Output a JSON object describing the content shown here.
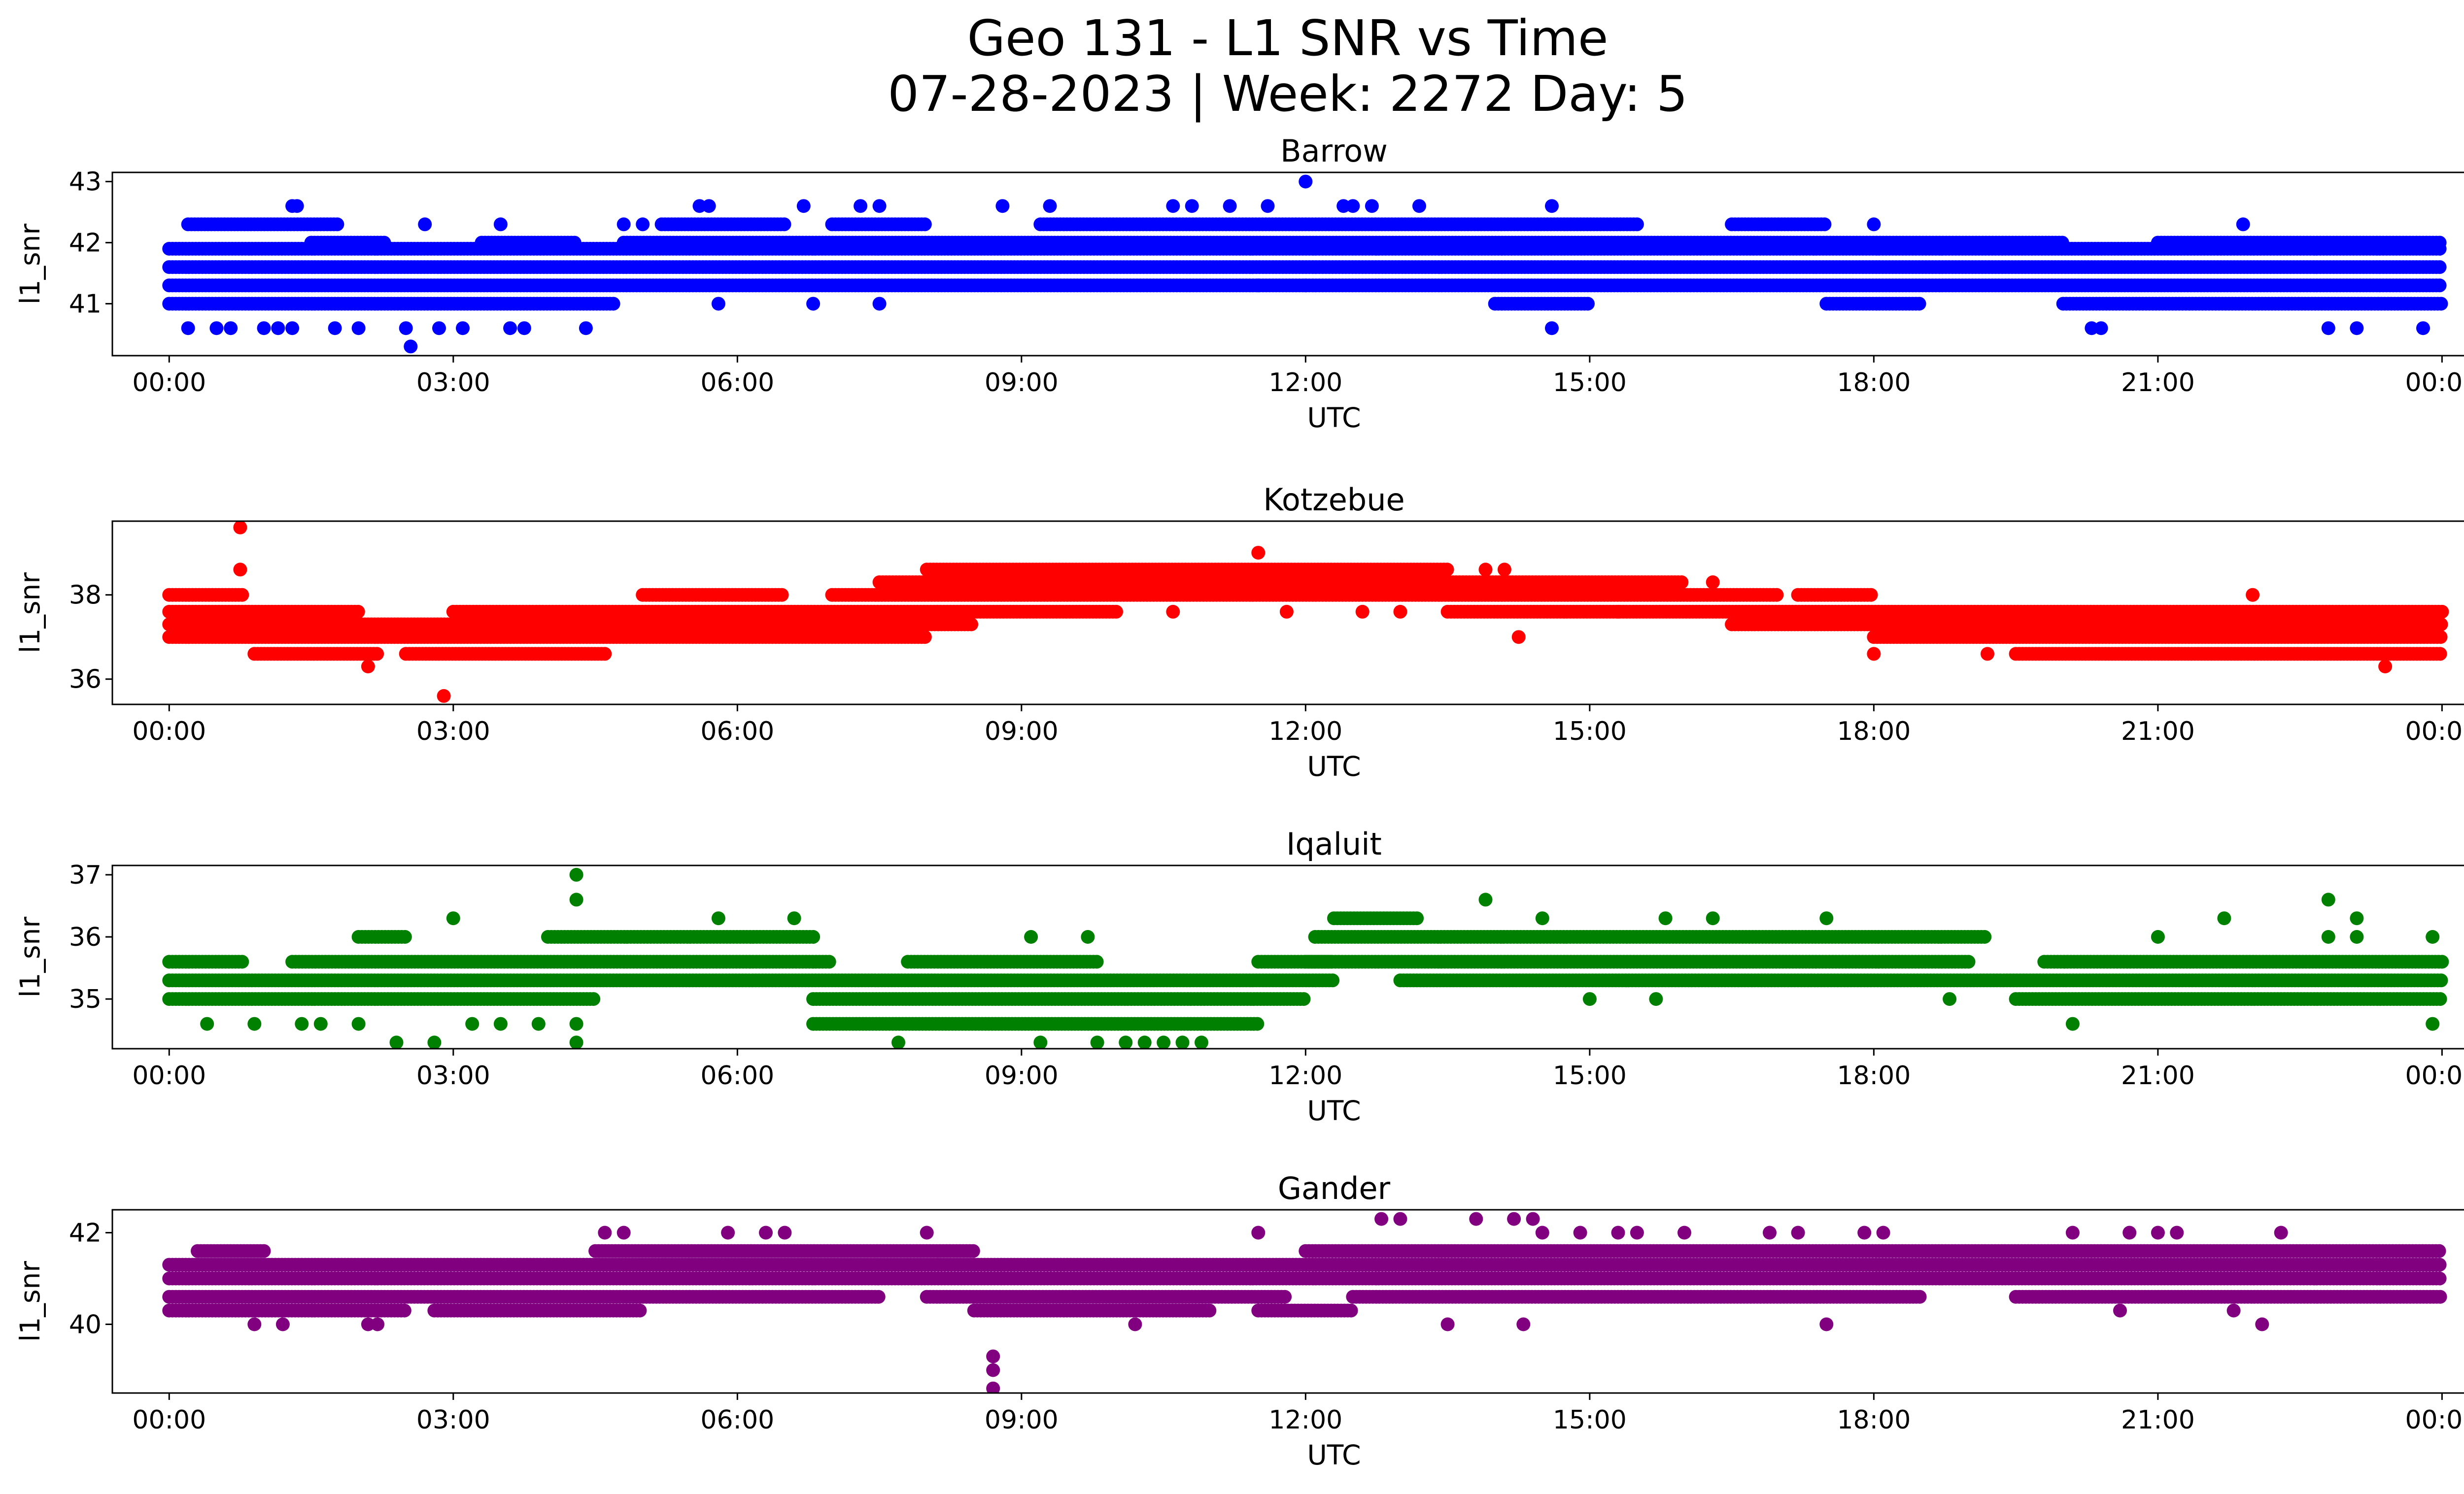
{
  "figure": {
    "title_line1": "Geo 131 - L1 SNR vs Time",
    "title_line2": "07-28-2023 | Week: 2272 Day: 5"
  },
  "chart_data": [
    {
      "type": "scatter",
      "title": "Barrow",
      "xlabel": "UTC",
      "ylabel": "l1_snr",
      "color": "#0000ff",
      "x_unit": "hours UTC",
      "xlim": [
        -0.6,
        25.2
      ],
      "ylim": [
        40.15,
        43.15
      ],
      "x_ticks": [
        0,
        3,
        6,
        9,
        12,
        15,
        18,
        21,
        24
      ],
      "x_tick_labels": [
        "00:00",
        "03:00",
        "06:00",
        "09:00",
        "12:00",
        "15:00",
        "18:00",
        "21:00",
        "00:00"
      ],
      "y_ticks": [
        41,
        42,
        43
      ],
      "y_tick_labels": [
        "41",
        "42",
        "43"
      ],
      "bands": [
        {
          "y": 41.0,
          "x": [
            [
              0,
              4.7
            ],
            [
              14.0,
              15.0
            ],
            [
              17.5,
              18.5
            ],
            [
              20.0,
              24.0
            ]
          ]
        },
        {
          "y": 41.3,
          "x": [
            [
              0,
              24.0
            ]
          ]
        },
        {
          "y": 41.6,
          "x": [
            [
              0,
              24.0
            ]
          ]
        },
        {
          "y": 41.9,
          "x": [
            [
              0,
              24.0
            ]
          ]
        },
        {
          "y": 42.0,
          "x": [
            [
              1.5,
              2.3
            ],
            [
              3.3,
              4.3
            ],
            [
              4.8,
              20.0
            ],
            [
              21.0,
              24.0
            ]
          ]
        },
        {
          "y": 42.3,
          "x": [
            [
              0.2,
              1.8
            ],
            [
              5.2,
              6.5
            ],
            [
              7.0,
              8.0
            ],
            [
              9.2,
              15.5
            ],
            [
              16.5,
              17.5
            ]
          ]
        }
      ],
      "points": [
        [
          0.2,
          40.6
        ],
        [
          0.5,
          40.6
        ],
        [
          0.65,
          40.6
        ],
        [
          1.0,
          40.6
        ],
        [
          1.15,
          40.6
        ],
        [
          1.3,
          40.6
        ],
        [
          1.75,
          40.6
        ],
        [
          2.0,
          40.6
        ],
        [
          2.55,
          40.3
        ],
        [
          2.5,
          40.6
        ],
        [
          2.85,
          40.6
        ],
        [
          3.1,
          40.6
        ],
        [
          3.6,
          40.6
        ],
        [
          3.75,
          40.6
        ],
        [
          4.4,
          40.6
        ],
        [
          1.3,
          42.6
        ],
        [
          1.35,
          42.6
        ],
        [
          5.6,
          42.6
        ],
        [
          5.7,
          42.6
        ],
        [
          6.7,
          42.6
        ],
        [
          7.3,
          42.6
        ],
        [
          7.5,
          42.6
        ],
        [
          8.8,
          42.6
        ],
        [
          9.3,
          42.6
        ],
        [
          10.6,
          42.6
        ],
        [
          10.8,
          42.6
        ],
        [
          11.2,
          42.6
        ],
        [
          11.6,
          42.6
        ],
        [
          12.0,
          43.0
        ],
        [
          12.4,
          42.6
        ],
        [
          12.5,
          42.6
        ],
        [
          12.7,
          42.6
        ],
        [
          13.2,
          42.6
        ],
        [
          14.6,
          42.6
        ],
        [
          14.6,
          40.6
        ],
        [
          20.3,
          40.6
        ],
        [
          20.4,
          40.6
        ],
        [
          22.8,
          40.6
        ],
        [
          23.1,
          40.6
        ],
        [
          23.8,
          40.6
        ],
        [
          5.8,
          41.0
        ],
        [
          6.8,
          41.0
        ],
        [
          7.5,
          41.0
        ],
        [
          11.5,
          41.3
        ],
        [
          12.0,
          41.3
        ],
        [
          21.9,
          42.3
        ],
        [
          2.7,
          42.3
        ],
        [
          3.5,
          42.3
        ],
        [
          4.8,
          42.3
        ],
        [
          5.0,
          42.3
        ],
        [
          18.0,
          42.3
        ]
      ]
    },
    {
      "type": "scatter",
      "title": "Kotzebue",
      "xlabel": "UTC",
      "ylabel": "l1_snr",
      "color": "#ff0000",
      "x_unit": "hours UTC",
      "xlim": [
        -0.6,
        25.2
      ],
      "ylim": [
        35.4,
        39.75
      ],
      "x_ticks": [
        0,
        3,
        6,
        9,
        12,
        15,
        18,
        21,
        24
      ],
      "x_tick_labels": [
        "00:00",
        "03:00",
        "06:00",
        "09:00",
        "12:00",
        "15:00",
        "18:00",
        "21:00",
        "00:00"
      ],
      "y_ticks": [
        36,
        38
      ],
      "y_tick_labels": [
        "36",
        "38"
      ],
      "bands": [
        {
          "y": 36.6,
          "x": [
            [
              0.9,
              2.2
            ],
            [
              2.5,
              4.6
            ],
            [
              19.5,
              24.0
            ]
          ]
        },
        {
          "y": 37.0,
          "x": [
            [
              0,
              8.0
            ],
            [
              18.0,
              24.0
            ]
          ]
        },
        {
          "y": 37.3,
          "x": [
            [
              0,
              8.5
            ],
            [
              16.5,
              24.0
            ]
          ]
        },
        {
          "y": 37.6,
          "x": [
            [
              0,
              2.0
            ],
            [
              3.0,
              10.0
            ],
            [
              13.5,
              24.0
            ]
          ]
        },
        {
          "y": 38.0,
          "x": [
            [
              0,
              0.8
            ],
            [
              5.0,
              6.5
            ],
            [
              7.0,
              17.0
            ],
            [
              17.2,
              18.0
            ]
          ]
        },
        {
          "y": 38.3,
          "x": [
            [
              7.5,
              16.0
            ]
          ]
        },
        {
          "y": 38.6,
          "x": [
            [
              8.0,
              13.5
            ]
          ]
        }
      ],
      "points": [
        [
          0.75,
          39.6
        ],
        [
          0.75,
          38.6
        ],
        [
          2.1,
          36.3
        ],
        [
          2.9,
          35.6
        ],
        [
          11.5,
          39.0
        ],
        [
          14.25,
          37.0
        ],
        [
          18.0,
          36.6
        ],
        [
          19.2,
          36.6
        ],
        [
          23.4,
          36.3
        ],
        [
          22.0,
          38.0
        ],
        [
          13.9,
          38.6
        ],
        [
          14.1,
          38.6
        ],
        [
          10.6,
          37.6
        ],
        [
          11.8,
          37.6
        ],
        [
          12.6,
          37.6
        ],
        [
          13.0,
          37.6
        ],
        [
          15.3,
          37.6
        ],
        [
          16.3,
          38.3
        ]
      ]
    },
    {
      "type": "scatter",
      "title": "Iqaluit",
      "xlabel": "UTC",
      "ylabel": "l1_snr",
      "color": "#008000",
      "x_unit": "hours UTC",
      "xlim": [
        -0.6,
        25.2
      ],
      "ylim": [
        34.2,
        37.15
      ],
      "x_ticks": [
        0,
        3,
        6,
        9,
        12,
        15,
        18,
        21,
        24
      ],
      "x_tick_labels": [
        "00:00",
        "03:00",
        "06:00",
        "09:00",
        "12:00",
        "15:00",
        "18:00",
        "21:00",
        "00:00"
      ],
      "y_ticks": [
        35,
        36,
        37
      ],
      "y_tick_labels": [
        "35",
        "36",
        "37"
      ],
      "bands": [
        {
          "y": 34.6,
          "x": [
            [
              6.8,
              11.5
            ]
          ]
        },
        {
          "y": 35.0,
          "x": [
            [
              0,
              4.5
            ],
            [
              6.8,
              12.0
            ],
            [
              19.5,
              24.0
            ]
          ]
        },
        {
          "y": 35.3,
          "x": [
            [
              0,
              12.3
            ],
            [
              13.0,
              24.0
            ]
          ]
        },
        {
          "y": 35.6,
          "x": [
            [
              0,
              0.8
            ],
            [
              1.3,
              7.0
            ],
            [
              7.8,
              9.8
            ],
            [
              11.5,
              12.3
            ],
            [
              12.0,
              19.0
            ],
            [
              19.8,
              24.0
            ]
          ]
        },
        {
          "y": 36.0,
          "x": [
            [
              2.0,
              2.5
            ],
            [
              4.0,
              6.8
            ],
            [
              12.1,
              19.2
            ]
          ]
        },
        {
          "y": 36.3,
          "x": [
            [
              12.3,
              13.2
            ]
          ]
        }
      ],
      "points": [
        [
          0.4,
          34.6
        ],
        [
          0.9,
          34.6
        ],
        [
          1.4,
          34.6
        ],
        [
          1.6,
          34.6
        ],
        [
          2.0,
          34.6
        ],
        [
          3.2,
          34.6
        ],
        [
          3.5,
          34.6
        ],
        [
          3.9,
          34.6
        ],
        [
          2.4,
          34.3
        ],
        [
          2.8,
          34.3
        ],
        [
          4.3,
          34.3
        ],
        [
          4.3,
          34.6
        ],
        [
          4.3,
          36.6
        ],
        [
          4.3,
          37.0
        ],
        [
          3.0,
          36.3
        ],
        [
          5.8,
          36.3
        ],
        [
          6.6,
          36.3
        ],
        [
          13.9,
          36.6
        ],
        [
          14.5,
          36.3
        ],
        [
          15.8,
          36.3
        ],
        [
          16.3,
          36.3
        ],
        [
          17.5,
          36.3
        ],
        [
          9.8,
          34.3
        ],
        [
          10.1,
          34.3
        ],
        [
          10.3,
          34.3
        ],
        [
          10.5,
          34.3
        ],
        [
          10.7,
          34.3
        ],
        [
          10.9,
          34.3
        ],
        [
          9.2,
          34.3
        ],
        [
          7.7,
          34.3
        ],
        [
          9.1,
          36.0
        ],
        [
          9.7,
          36.0
        ],
        [
          21.0,
          36.0
        ],
        [
          21.7,
          36.3
        ],
        [
          22.8,
          36.0
        ],
        [
          23.1,
          36.0
        ],
        [
          23.1,
          36.3
        ],
        [
          23.9,
          36.0
        ],
        [
          23.9,
          34.6
        ],
        [
          22.8,
          36.6
        ],
        [
          20.1,
          34.6
        ],
        [
          15.0,
          35.0
        ],
        [
          15.7,
          35.0
        ],
        [
          18.8,
          35.0
        ]
      ]
    },
    {
      "type": "scatter",
      "title": "Gander",
      "xlabel": "UTC",
      "ylabel": "l1_snr",
      "color": "#800080",
      "x_unit": "hours UTC",
      "xlim": [
        -0.6,
        25.2
      ],
      "ylim": [
        38.5,
        42.5
      ],
      "x_ticks": [
        0,
        3,
        6,
        9,
        12,
        15,
        18,
        21,
        24
      ],
      "x_tick_labels": [
        "00:00",
        "03:00",
        "06:00",
        "09:00",
        "12:00",
        "15:00",
        "18:00",
        "21:00",
        "00:00"
      ],
      "y_ticks": [
        40,
        42
      ],
      "y_tick_labels": [
        "40",
        "42"
      ],
      "bands": [
        {
          "y": 40.3,
          "x": [
            [
              0,
              2.5
            ],
            [
              2.8,
              5.0
            ],
            [
              8.5,
              11.0
            ],
            [
              11.5,
              12.5
            ]
          ]
        },
        {
          "y": 40.6,
          "x": [
            [
              0,
              7.5
            ],
            [
              8.0,
              11.8
            ],
            [
              12.5,
              18.5
            ],
            [
              19.5,
              24.0
            ]
          ]
        },
        {
          "y": 41.0,
          "x": [
            [
              0,
              24.0
            ]
          ]
        },
        {
          "y": 41.3,
          "x": [
            [
              0,
              24.0
            ]
          ]
        },
        {
          "y": 41.6,
          "x": [
            [
              0.3,
              1.0
            ],
            [
              4.5,
              8.5
            ],
            [
              12.0,
              24.0
            ]
          ]
        }
      ],
      "points": [
        [
          8.7,
          39.3
        ],
        [
          8.7,
          39.0
        ],
        [
          8.7,
          38.6
        ],
        [
          0.9,
          40.0
        ],
        [
          1.2,
          40.0
        ],
        [
          2.1,
          40.0
        ],
        [
          2.2,
          40.0
        ],
        [
          10.2,
          40.0
        ],
        [
          13.5,
          40.0
        ],
        [
          14.3,
          40.0
        ],
        [
          17.5,
          40.0
        ],
        [
          22.1,
          40.0
        ],
        [
          4.6,
          42.0
        ],
        [
          4.8,
          42.0
        ],
        [
          5.9,
          42.0
        ],
        [
          6.3,
          42.0
        ],
        [
          6.5,
          42.0
        ],
        [
          8.0,
          42.0
        ],
        [
          11.5,
          42.0
        ],
        [
          12.8,
          42.3
        ],
        [
          13.0,
          42.3
        ],
        [
          13.8,
          42.3
        ],
        [
          14.2,
          42.3
        ],
        [
          14.4,
          42.3
        ],
        [
          14.5,
          42.0
        ],
        [
          14.9,
          42.0
        ],
        [
          15.3,
          42.0
        ],
        [
          15.5,
          42.0
        ],
        [
          16.0,
          42.0
        ],
        [
          16.9,
          42.0
        ],
        [
          17.2,
          42.0
        ],
        [
          17.9,
          42.0
        ],
        [
          18.1,
          42.0
        ],
        [
          20.1,
          42.0
        ],
        [
          20.7,
          42.0
        ],
        [
          21.0,
          42.0
        ],
        [
          21.2,
          42.0
        ],
        [
          22.3,
          42.0
        ],
        [
          21.8,
          40.3
        ],
        [
          20.6,
          40.3
        ]
      ]
    }
  ]
}
